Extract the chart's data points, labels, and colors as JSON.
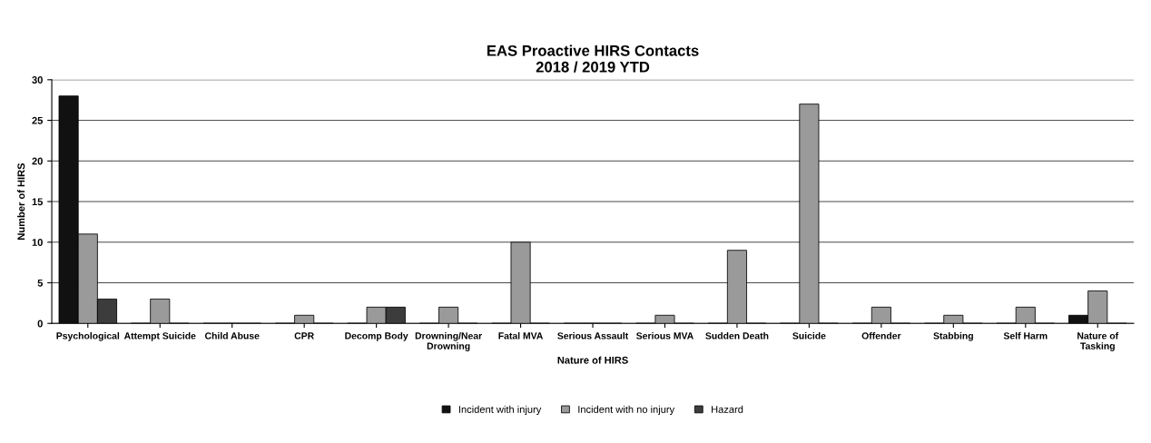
{
  "chart_data": {
    "type": "bar",
    "title": "EAS Proactive HIRS Contacts\n2018 / 2019 YTD",
    "xlabel": "Nature of HIRS",
    "ylabel": "Number of HIRS",
    "categories": [
      "Psychological",
      "Attempt Suicide",
      "Child Abuse",
      "CPR",
      "Decomp Body",
      "Drowning/Near\nDrowning",
      "Fatal MVA",
      "Serious Assault",
      "Serious MVA",
      "Sudden Death",
      "Suicide",
      "Offender",
      "Stabbing",
      "Self Harm",
      "Nature of\nTasking"
    ],
    "series": [
      {
        "name": "Incident with injury",
        "color": "#111111",
        "values": [
          28,
          0,
          0,
          0,
          0,
          0,
          0,
          0,
          0,
          0,
          0,
          0,
          0,
          0,
          1
        ]
      },
      {
        "name": "Incident with no injury",
        "color": "#9a9a9a",
        "values": [
          11,
          3,
          0,
          1,
          2,
          2,
          10,
          0,
          1,
          9,
          27,
          2,
          1,
          2,
          4
        ]
      },
      {
        "name": "Hazard",
        "color": "#3c3c3c",
        "values": [
          3,
          0,
          0,
          0,
          2,
          0,
          0,
          0,
          0,
          0,
          0,
          0,
          0,
          0,
          0
        ]
      }
    ],
    "ylim": [
      0,
      30
    ],
    "yticks": [
      0,
      5,
      10,
      15,
      20,
      25,
      30
    ],
    "grid": "y",
    "legend": "bottom"
  }
}
